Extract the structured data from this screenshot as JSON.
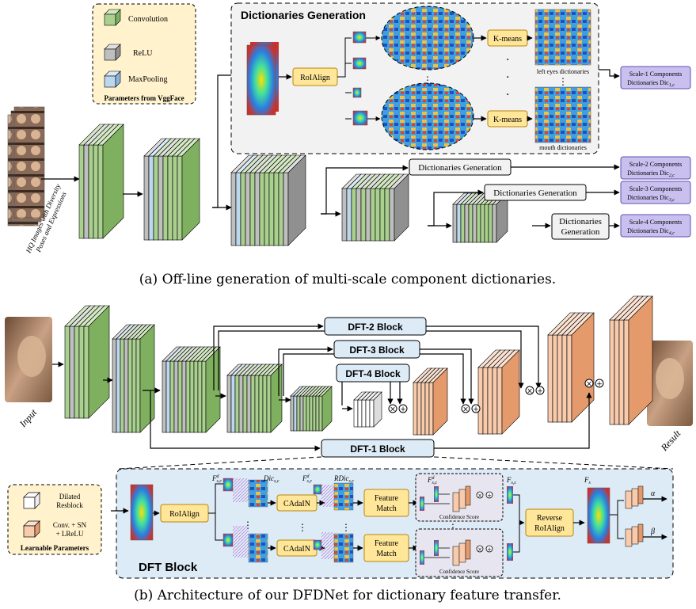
{
  "legend_a": {
    "convolution": "Convolution",
    "relu": "ReLU",
    "maxpooling": "MaxPooling",
    "title": "Parameters from VggFace"
  },
  "input_a_label": [
    "HQ Images with Diversity",
    "Poses and Expressions"
  ],
  "dict_gen_panel": {
    "title": "Dictionaries Generation",
    "roialign": "RoIAlign",
    "kmeans": "K-means",
    "left_eyes": "left eyes dictionaries",
    "mouth": "mouth dictionaries"
  },
  "dict_gen_box": "Dictionaries Generation",
  "dict_gen_box_split": [
    "Dictionaries",
    "Generation"
  ],
  "scale_outputs": [
    {
      "line1": "Scale-1 Components",
      "line2": "Dictionaries Dic",
      "sub": "1,c"
    },
    {
      "line1": "Scale-2 Components",
      "line2": "Dictionaries Dic",
      "sub": "2,c"
    },
    {
      "line1": "Scale-3 Components",
      "line2": "Dictionaries Dic",
      "sub": "3,c"
    },
    {
      "line1": "Scale-4 Components",
      "line2": "Dictionaries Dic",
      "sub": "4,c"
    }
  ],
  "caption_a": "(a) Off-line generation of multi-scale component dictionaries.",
  "input_b": "Input",
  "result_b": "Result",
  "dft_blocks": [
    "DFT-2 Block",
    "DFT-3 Block",
    "DFT-4 Block",
    "DFT-1 Block"
  ],
  "legend_b": {
    "dilated": [
      "Dilated",
      "Resblock"
    ],
    "conv": [
      "Conv. + SN",
      "+ LReLU"
    ],
    "title": "Learnable Parameters"
  },
  "dft_detail": {
    "title": "DFT Block",
    "roialign": "RoIAlign",
    "cadain": "CAdaIN",
    "feature_match": [
      "Feature",
      "Match"
    ],
    "reverse": [
      "Reverse",
      "RoIAlign"
    ],
    "confidence": "Confidence Score",
    "f_label": "F",
    "dic_label": "Dic",
    "rdic_label": "RDic",
    "sub_sc": "s,c",
    "sup_d": "d",
    "alpha": "α",
    "beta": "β"
  },
  "caption_b": "(b) Architecture of our DFDNet for dictionary feature transfer.",
  "colors": {
    "green": "#a9d08e",
    "gray": "#bfbfbf",
    "blue": "#bdd7ee",
    "orange": "#f8cbad",
    "yellow_box": "#ffe699",
    "purple_box": "#c9c0f0",
    "dft_box": "#ddebf7",
    "legend_bg": "#fff2cc"
  }
}
